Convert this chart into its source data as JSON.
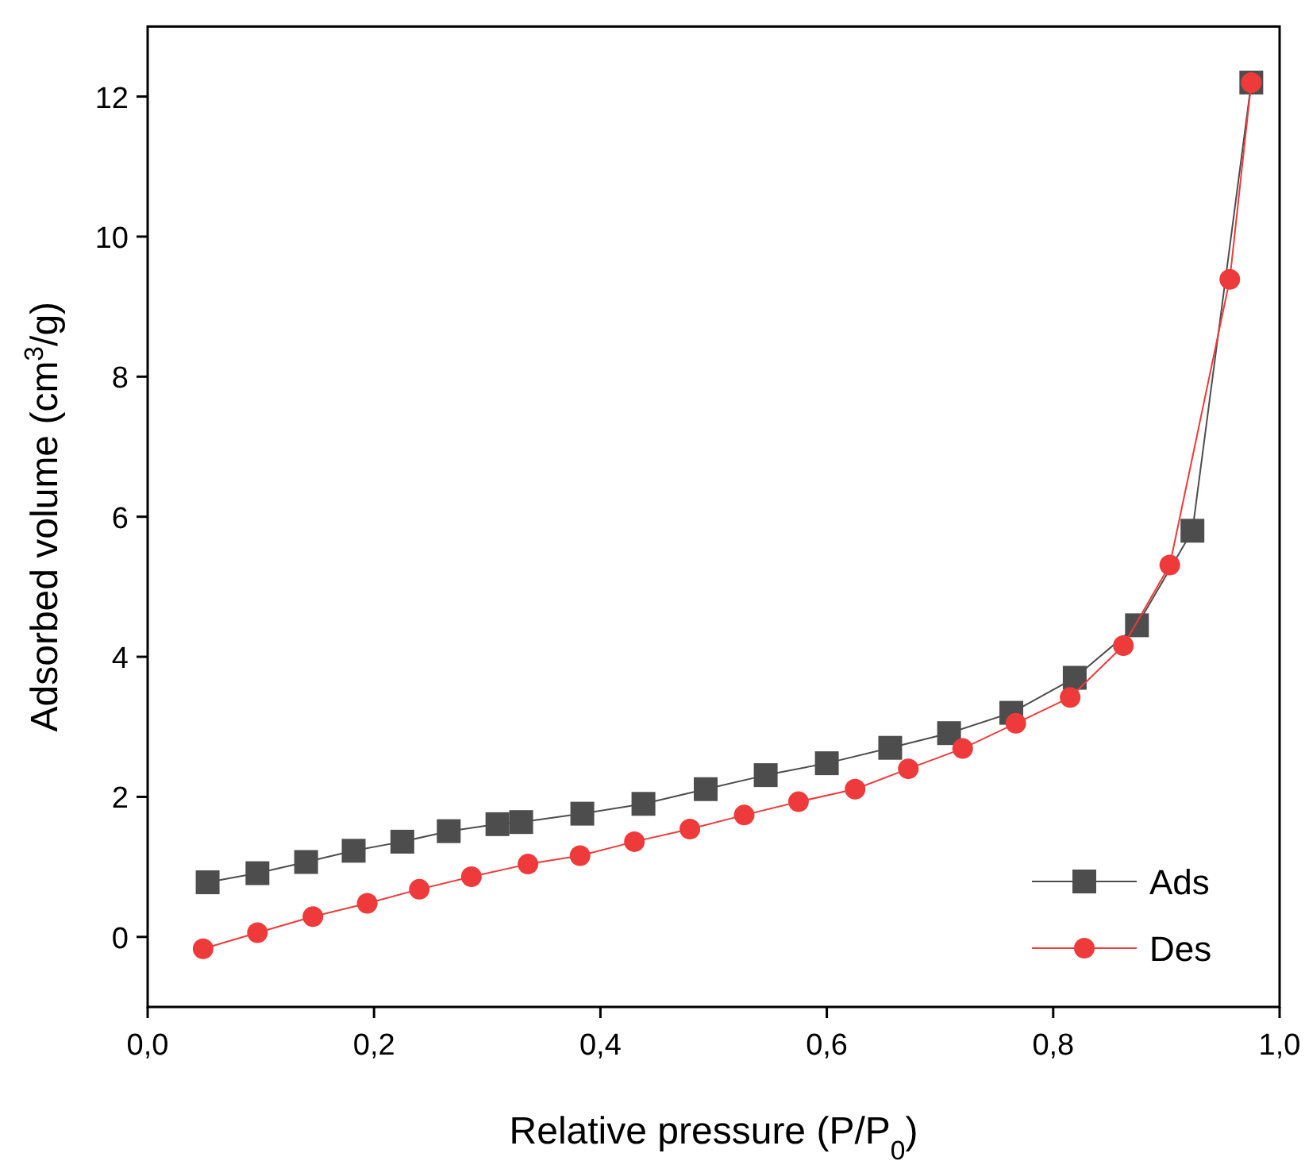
{
  "chart_data": {
    "type": "line",
    "xlabel": "Relative pressure (P/P$_{0}$)",
    "ylabel": "Adsorbed volume (cm$^{3}$/g)",
    "xlim": [
      0,
      1
    ],
    "xticks": [
      {
        "value": 0,
        "label": "0,0"
      },
      {
        "value": 0.2,
        "label": "0,2"
      },
      {
        "value": 0.4,
        "label": "0,4"
      },
      {
        "value": 0.6,
        "label": "0,6"
      },
      {
        "value": 0.8,
        "label": "0,8"
      },
      {
        "value": 1,
        "label": "1,0"
      }
    ],
    "ylim": [
      -1,
      13
    ],
    "yticks": [
      0,
      2,
      4,
      6,
      8,
      10,
      12
    ],
    "grid": false,
    "legend": "bottom right",
    "series": [
      {
        "name": "Ads",
        "color": "#4d4d4d",
        "marker": "square",
        "x": [
          0.053,
          0.097,
          0.14,
          0.182,
          0.225,
          0.266,
          0.309,
          0.33,
          0.384,
          0.438,
          0.493,
          0.546,
          0.6,
          0.656,
          0.708,
          0.763,
          0.819,
          0.874,
          0.923,
          0.975
        ],
        "values": [
          0.78,
          0.91,
          1.07,
          1.23,
          1.36,
          1.51,
          1.61,
          1.64,
          1.76,
          1.9,
          2.11,
          2.31,
          2.48,
          2.7,
          2.91,
          3.2,
          3.7,
          4.45,
          5.8,
          12.2
        ]
      },
      {
        "name": "Des",
        "color": "#ee3a3a",
        "marker": "circle",
        "x": [
          0.049,
          0.097,
          0.146,
          0.194,
          0.24,
          0.286,
          0.336,
          0.382,
          0.43,
          0.479,
          0.527,
          0.575,
          0.625,
          0.672,
          0.72,
          0.767,
          0.815,
          0.862,
          0.903,
          0.956,
          0.975
        ],
        "values": [
          -0.17,
          0.06,
          0.29,
          0.48,
          0.68,
          0.86,
          1.04,
          1.16,
          1.36,
          1.54,
          1.74,
          1.93,
          2.11,
          2.4,
          2.69,
          3.05,
          3.42,
          4.16,
          5.31,
          9.39,
          12.2
        ]
      }
    ]
  }
}
